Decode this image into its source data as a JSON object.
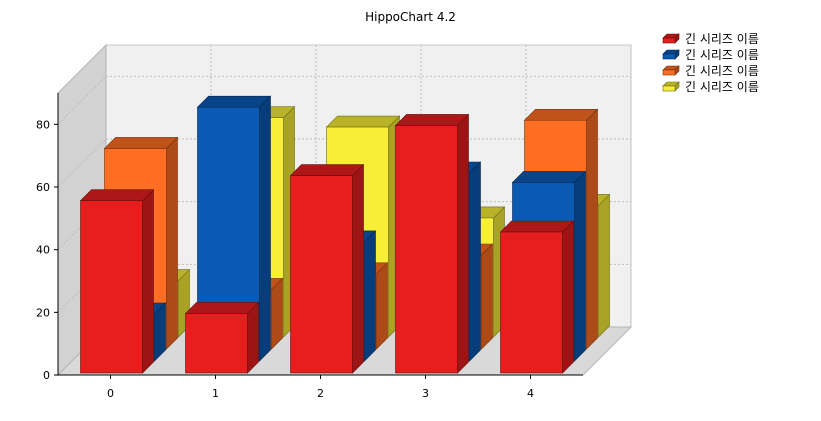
{
  "chart_data": {
    "type": "bar",
    "style": "3d-clustered",
    "title": "HippoChart 4.2",
    "categories": [
      "0",
      "1",
      "2",
      "3",
      "4"
    ],
    "ylim": [
      0,
      90
    ],
    "yticks": [
      "0",
      "20",
      "40",
      "60",
      "80"
    ],
    "grid": true,
    "legend_position": "top-right",
    "series": [
      {
        "name": "긴 시리즈 이름",
        "color": "#e61e1e",
        "values": [
          55,
          19,
          63,
          79,
          45
        ]
      },
      {
        "name": "긴 시리즈 이름",
        "color": "#0a5ab4",
        "values": [
          15,
          81,
          38,
          60,
          57
        ]
      },
      {
        "name": "긴 시리즈 이름",
        "color": "#ff6e23",
        "values": [
          64,
          19,
          24,
          30,
          73
        ]
      },
      {
        "name": "긴 시리즈 이름",
        "color": "#f7ef37",
        "values": [
          18,
          70,
          67,
          38,
          42
        ]
      }
    ]
  }
}
